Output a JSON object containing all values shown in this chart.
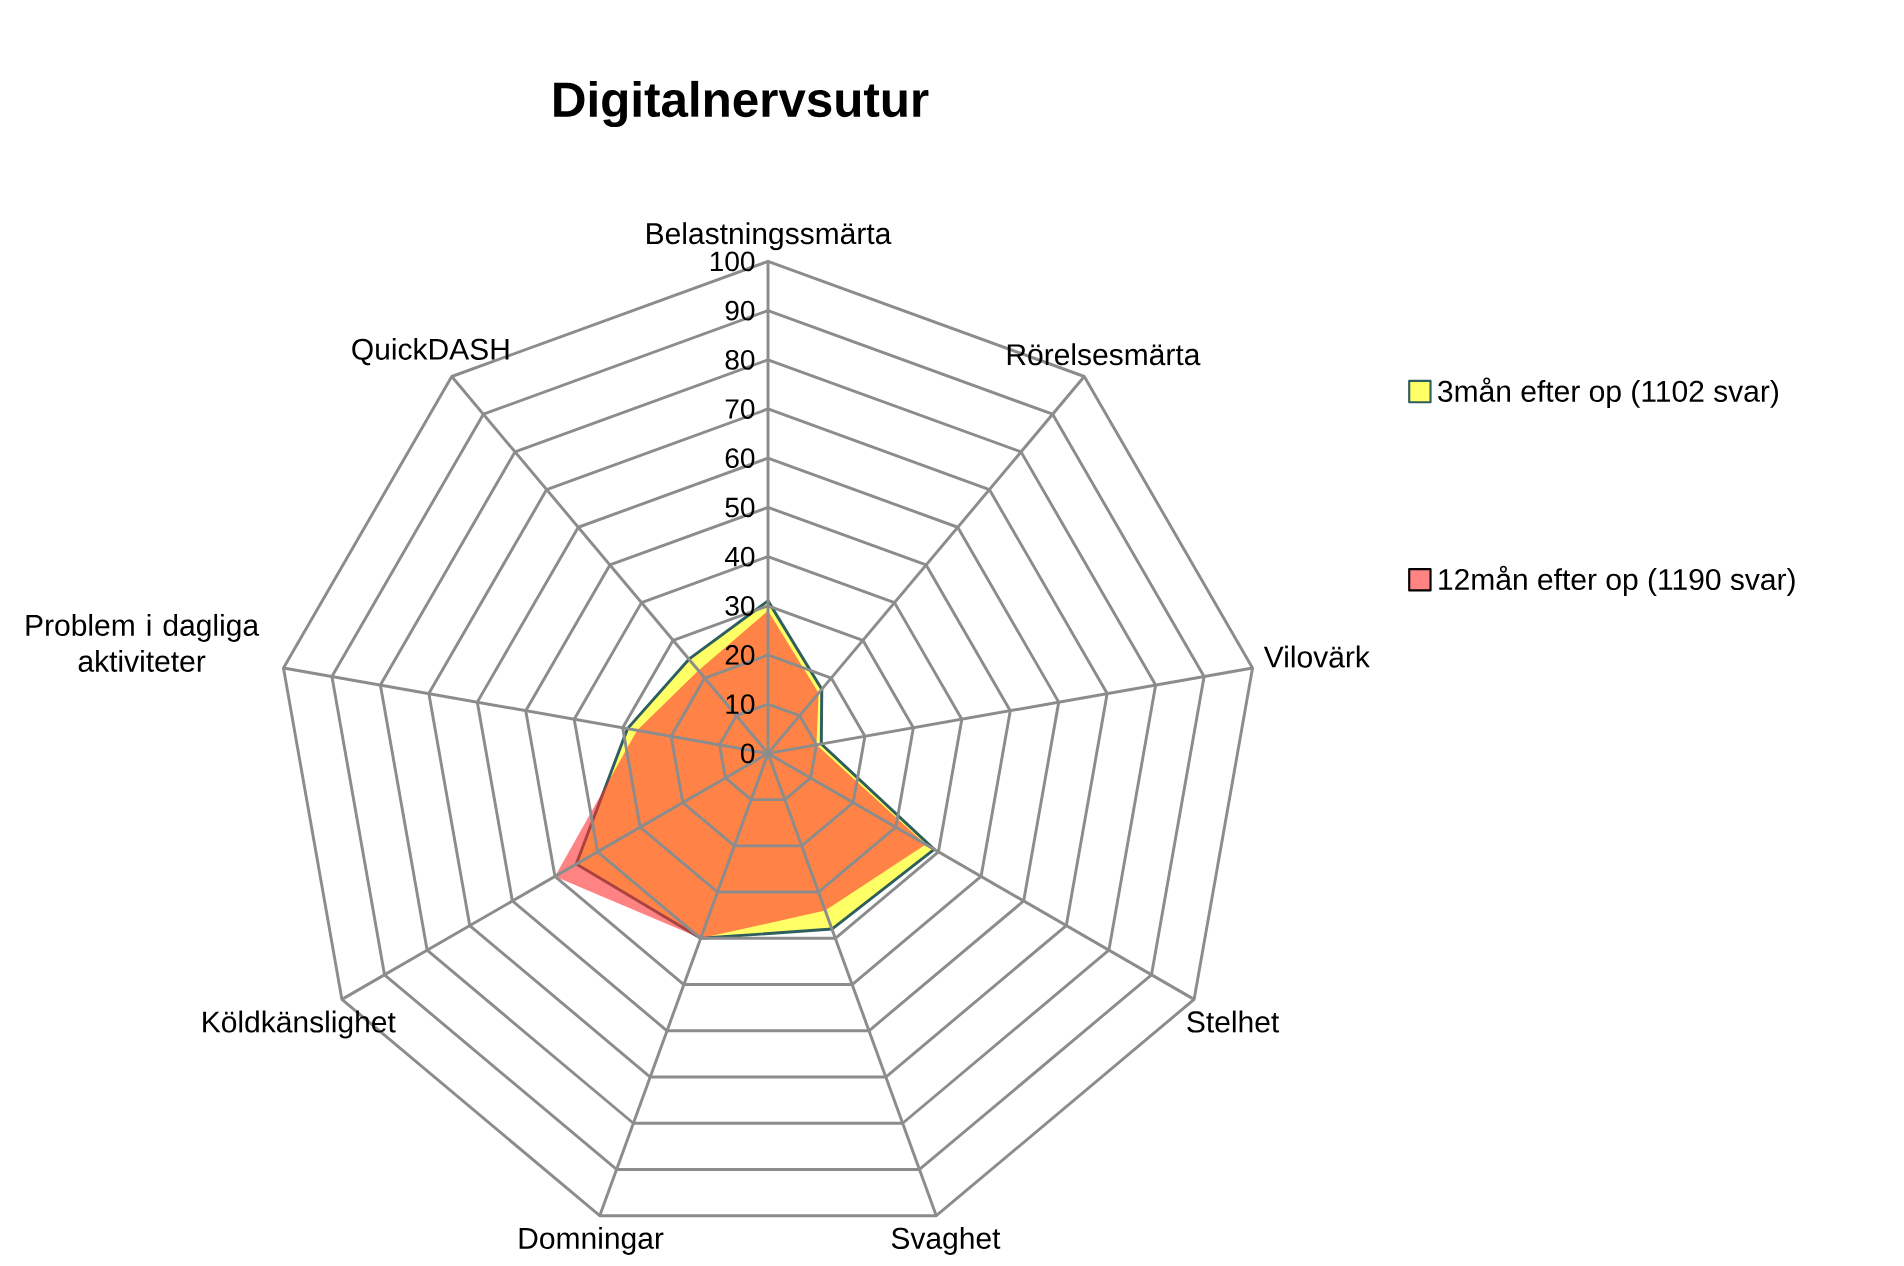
{
  "chart_data": {
    "type": "radar",
    "title": "Digitalnervsutur",
    "categories": [
      "Belastningssmärta",
      "Rörelsesmärta",
      "Vilovärk",
      "Stelhet",
      "Svaghet",
      "Domningar",
      "Köldkänslighet",
      "Problem i dagliga aktiviteter",
      "QuickDASH"
    ],
    "ylim": [
      0,
      100
    ],
    "yticks": [
      0,
      10,
      20,
      30,
      40,
      50,
      60,
      70,
      80,
      90,
      100
    ],
    "grid": true,
    "legend": "right",
    "series": [
      {
        "name": "3mån efter op (1102 svar)",
        "color": "#ffff66",
        "values": [
          31,
          17,
          11,
          39,
          38,
          40,
          45,
          29,
          25
        ]
      },
      {
        "name": "12mån efter op (1190 svar)",
        "color": "#ff3030",
        "values": [
          29,
          16,
          10,
          37,
          34,
          40,
          50,
          27,
          22
        ]
      }
    ]
  }
}
